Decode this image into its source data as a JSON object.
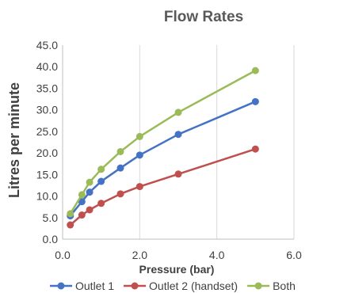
{
  "chart_data": {
    "type": "line",
    "title": "Flow Rates",
    "xlabel": "Pressure (bar)",
    "ylabel": "Litres per minute",
    "xlim": [
      0,
      6
    ],
    "ylim": [
      0,
      45
    ],
    "x_ticks": [
      "0.0",
      "2.0",
      "4.0",
      "6.0"
    ],
    "y_ticks": [
      "0.0",
      "5.0",
      "10.0",
      "15.0",
      "20.0",
      "25.0",
      "30.0",
      "35.0",
      "40.0",
      "45.0"
    ],
    "grid": "vertical",
    "legend_position": "bottom",
    "series": [
      {
        "name": "Outlet 1",
        "color": "#4472C4",
        "x": [
          0.2,
          0.5,
          0.7,
          1.0,
          1.5,
          2.0,
          3.0,
          5.0
        ],
        "y": [
          5.4,
          8.7,
          10.9,
          13.4,
          16.5,
          19.5,
          24.3,
          31.9
        ]
      },
      {
        "name": "Outlet 2 (handset)",
        "color": "#C0504D",
        "x": [
          0.2,
          0.5,
          0.7,
          1.0,
          1.5,
          2.0,
          3.0,
          5.0
        ],
        "y": [
          3.3,
          5.6,
          6.8,
          8.3,
          10.5,
          12.2,
          15.1,
          20.9
        ]
      },
      {
        "name": "Both",
        "color": "#9BBB59",
        "x": [
          0.2,
          0.5,
          0.7,
          1.0,
          1.5,
          2.0,
          3.0,
          5.0
        ],
        "y": [
          5.9,
          10.3,
          13.2,
          16.2,
          20.3,
          23.8,
          29.4,
          39.1
        ]
      }
    ]
  }
}
